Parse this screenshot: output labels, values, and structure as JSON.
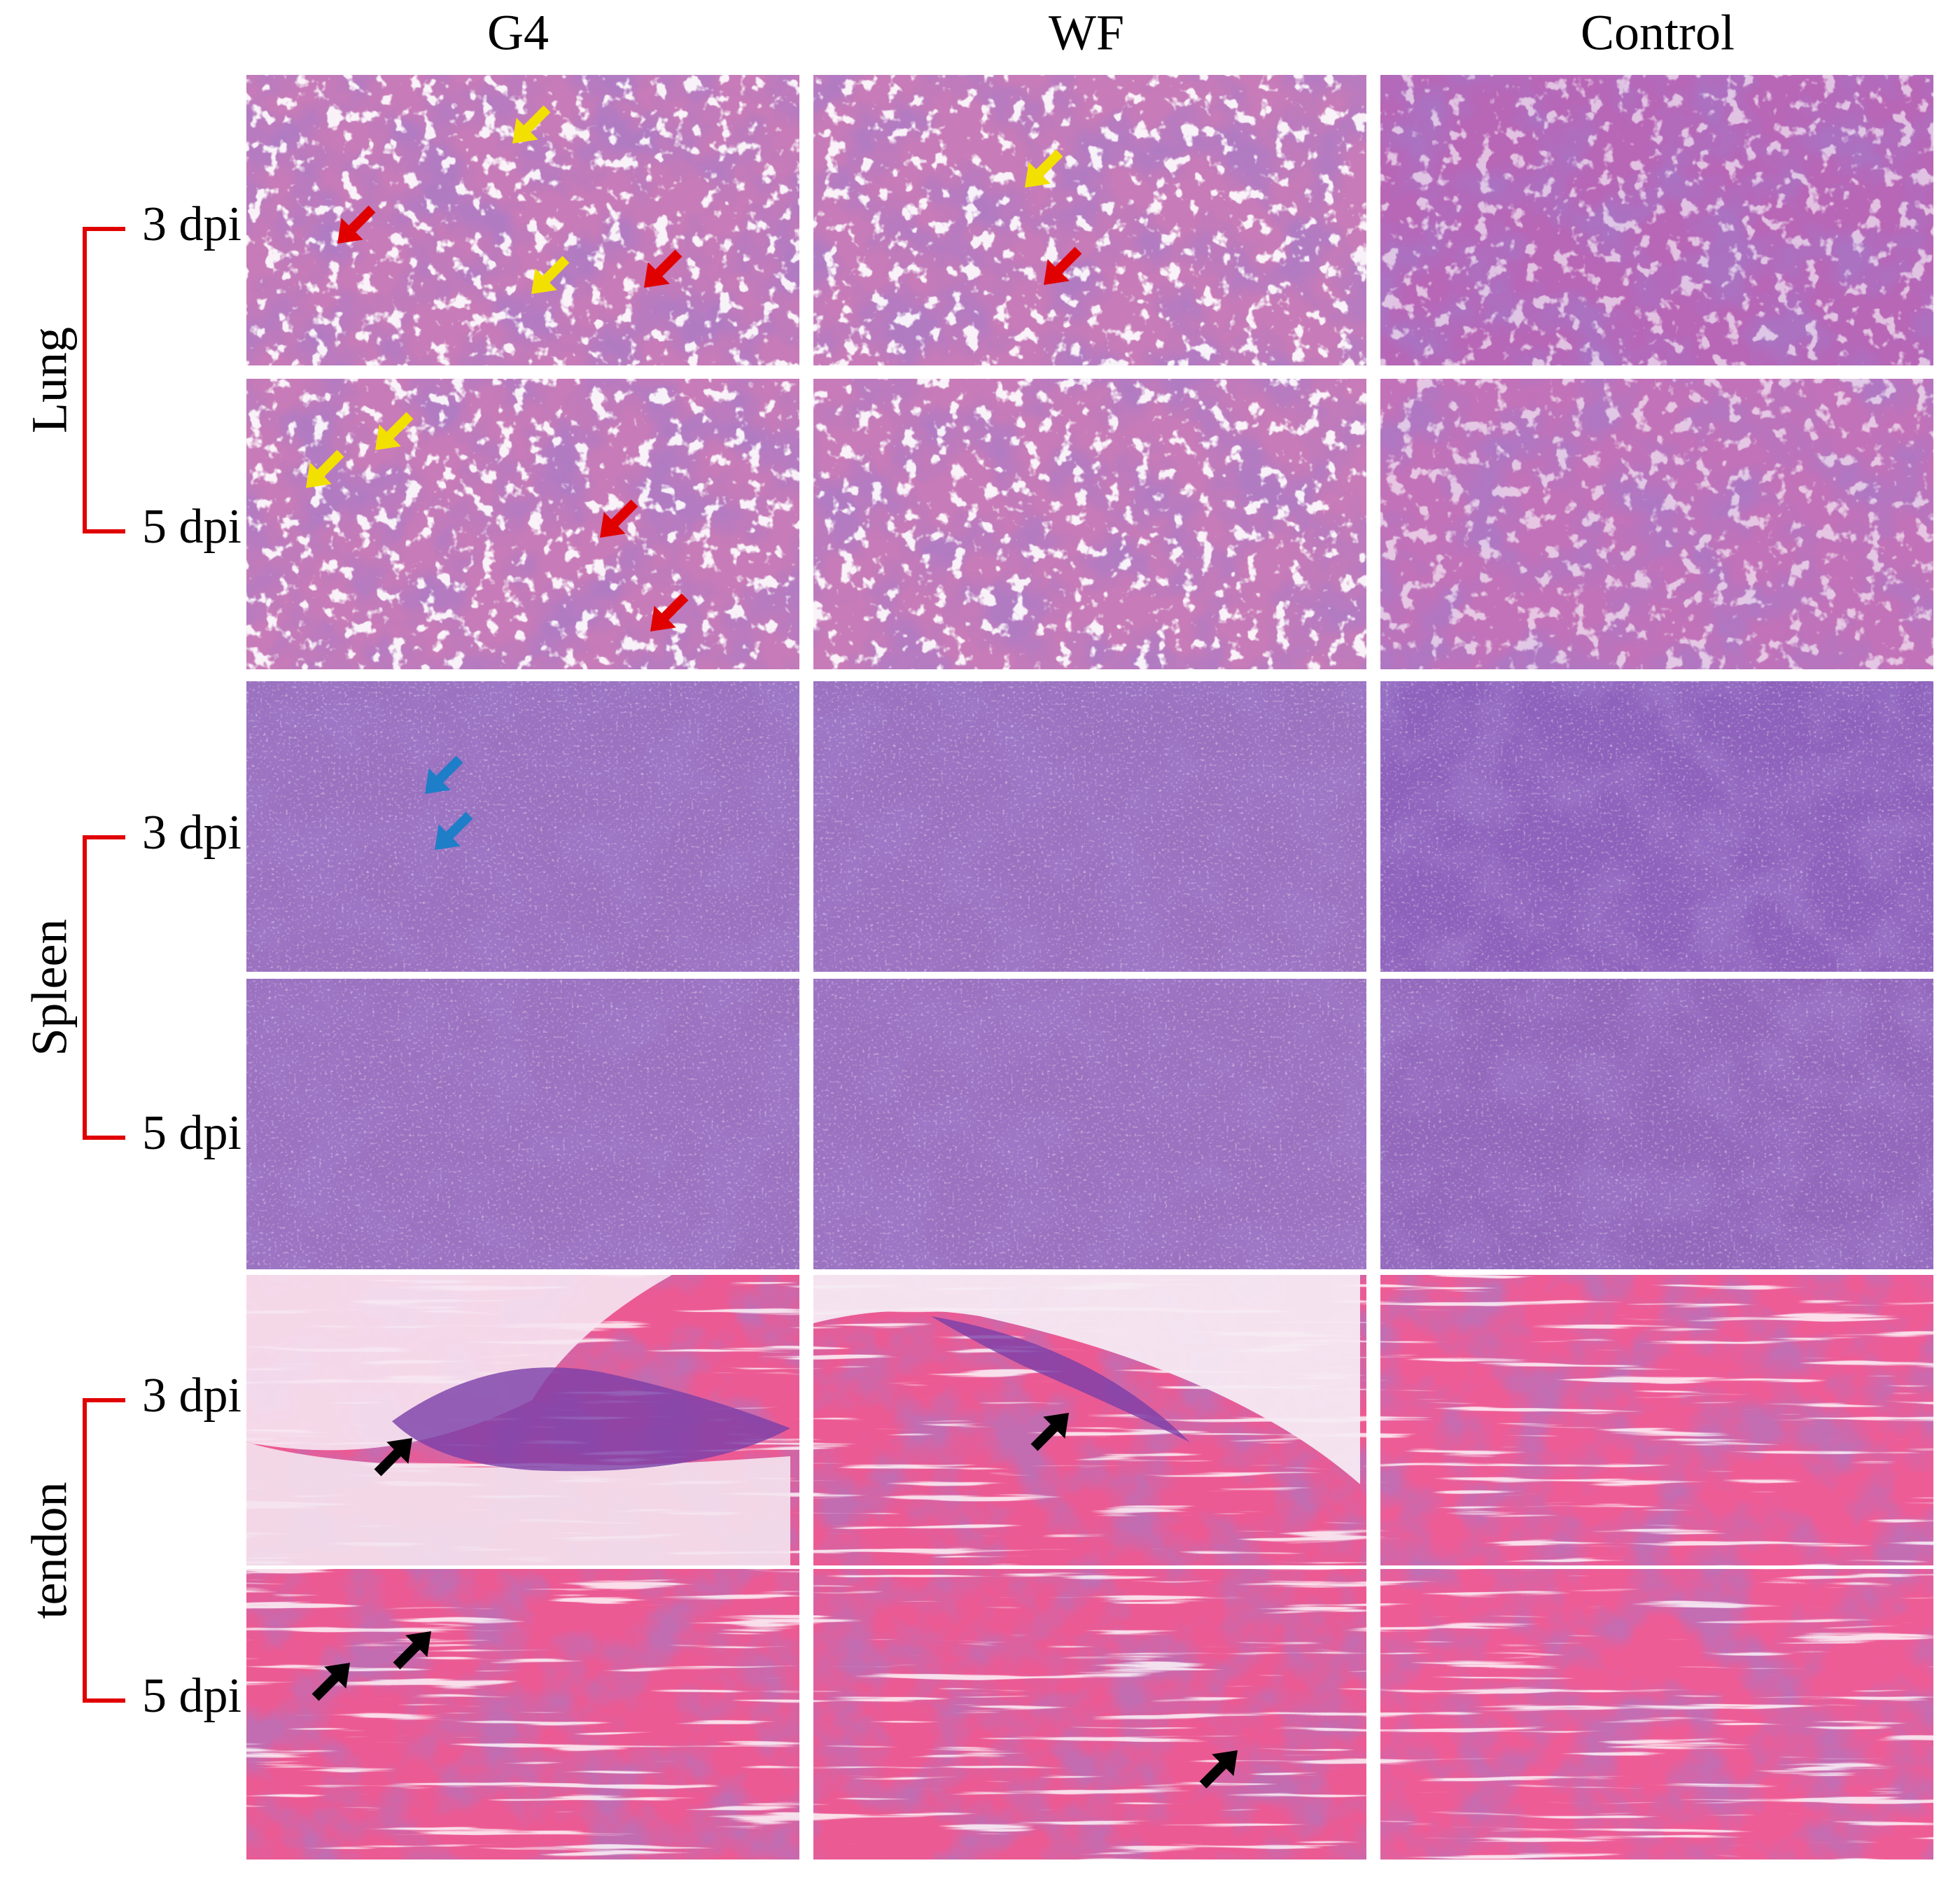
{
  "columns": [
    "G4",
    "WF",
    "Control"
  ],
  "groups": [
    {
      "label": "Lung",
      "rows": [
        "3 dpi",
        "5 dpi"
      ]
    },
    {
      "label": "Spleen",
      "rows": [
        "3 dpi",
        "5 dpi"
      ]
    },
    {
      "label": "tendon",
      "rows": [
        "3 dpi",
        "5 dpi"
      ]
    }
  ]
}
